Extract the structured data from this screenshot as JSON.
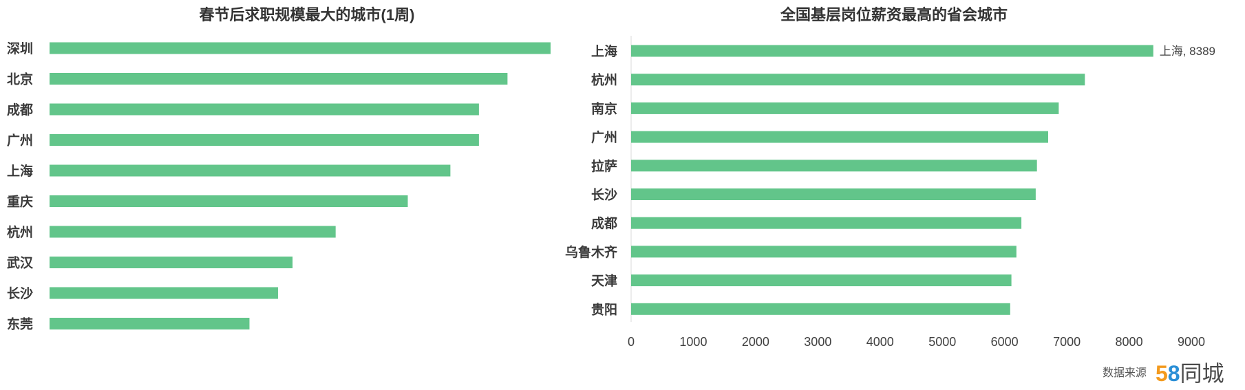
{
  "chart_data": [
    {
      "type": "bar",
      "orientation": "horizontal",
      "title": "春节后求职规模最大的城市(1周)",
      "categories": [
        "深圳",
        "北京",
        "成都",
        "广州",
        "上海",
        "重庆",
        "杭州",
        "武汉",
        "长沙",
        "东莞"
      ],
      "values": [
        1.0,
        0.914,
        0.857,
        0.857,
        0.8,
        0.715,
        0.571,
        0.485,
        0.456,
        0.399
      ],
      "xlim": [
        0,
        1
      ],
      "x_axis_visible": false,
      "axis_line": false,
      "grid": false,
      "legend": "none",
      "bar_color": "#62c58a"
    },
    {
      "type": "bar",
      "orientation": "horizontal",
      "title": "全国基层岗位薪资最高的省会城市",
      "categories": [
        "上海",
        "杭州",
        "南京",
        "广州",
        "拉萨",
        "长沙",
        "成都",
        "乌鲁木齐",
        "天津",
        "贵阳"
      ],
      "values": [
        8389,
        7290,
        6870,
        6700,
        6520,
        6500,
        6270,
        6190,
        6110,
        6090
      ],
      "xlim": [
        0,
        9000
      ],
      "xticks": [
        0,
        1000,
        2000,
        3000,
        4000,
        5000,
        6000,
        7000,
        8000,
        9000
      ],
      "data_labels": [
        {
          "index": 0,
          "text": "上海, 8389"
        }
      ],
      "x_axis_visible": true,
      "axis_line": true,
      "axis_color": "#d9d9d9",
      "grid": false,
      "legend": "none",
      "bar_color": "#62c58a"
    }
  ],
  "footer": {
    "source_label": "数据来源",
    "logo": {
      "digit_5": "5",
      "digit_8": "8",
      "text": "同城",
      "color_5": "#f39a1e",
      "color_8": "#2b8fd6",
      "color_text": "#4a4a4a"
    }
  }
}
